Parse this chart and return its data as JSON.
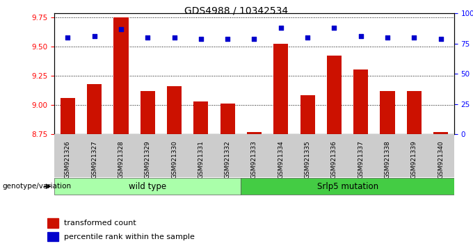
{
  "title": "GDS4988 / 10342534",
  "samples": [
    "GSM921326",
    "GSM921327",
    "GSM921328",
    "GSM921329",
    "GSM921330",
    "GSM921331",
    "GSM921332",
    "GSM921333",
    "GSM921334",
    "GSM921335",
    "GSM921336",
    "GSM921337",
    "GSM921338",
    "GSM921339",
    "GSM921340"
  ],
  "transformed_count": [
    9.06,
    9.18,
    9.75,
    9.12,
    9.16,
    9.03,
    9.01,
    8.77,
    9.52,
    9.08,
    9.42,
    9.3,
    9.12,
    9.12,
    8.77
  ],
  "percentile_rank": [
    80,
    81,
    87,
    80,
    80,
    79,
    79,
    79,
    88,
    80,
    88,
    81,
    80,
    80,
    79
  ],
  "groups": [
    {
      "label": "wild type",
      "start": 0,
      "end": 7,
      "color": "#aaffaa"
    },
    {
      "label": "Srlp5 mutation",
      "start": 7,
      "end": 15,
      "color": "#44cc44"
    }
  ],
  "ylim_left": [
    8.75,
    9.78
  ],
  "ylim_right": [
    0,
    100
  ],
  "yticks_left": [
    8.75,
    9.0,
    9.25,
    9.5,
    9.75
  ],
  "yticks_right": [
    0,
    25,
    50,
    75,
    100
  ],
  "bar_color": "#cc1100",
  "dot_color": "#0000cc",
  "bg_color": "#ffffff",
  "tick_area_bg": "#cccccc",
  "group_wt_color": "#aaffaa",
  "group_mut_color": "#44cc44",
  "legend_items": [
    {
      "label": "transformed count",
      "color": "#cc1100"
    },
    {
      "label": "percentile rank within the sample",
      "color": "#0000cc"
    }
  ]
}
